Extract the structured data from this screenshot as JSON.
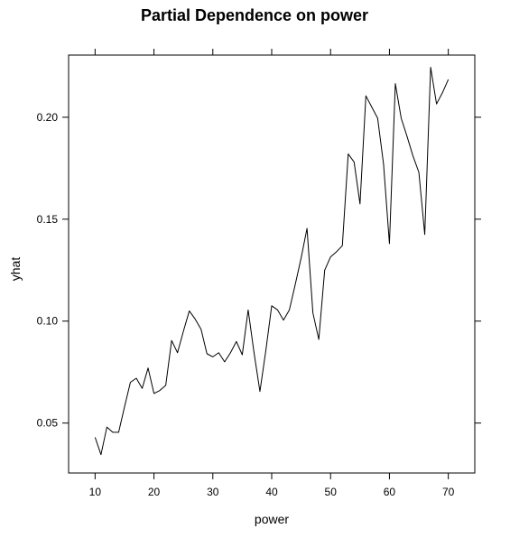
{
  "chart_data": {
    "type": "line",
    "title": "Partial Dependence on power",
    "xlabel": "power",
    "ylabel": "yhat",
    "xlim": [
      5.5,
      74.5
    ],
    "ylim": [
      0.0255,
      0.2305
    ],
    "xticks": [
      10,
      20,
      30,
      40,
      50,
      60,
      70
    ],
    "xtick_labels": [
      "10",
      "20",
      "30",
      "40",
      "50",
      "60",
      "70"
    ],
    "yticks": [
      0.05,
      0.1,
      0.15,
      0.2
    ],
    "ytick_labels": [
      "0.05",
      "0.10",
      "0.15",
      "0.20"
    ],
    "grid": false,
    "legend": "none",
    "line_color": "#000000",
    "series": [
      {
        "x": [
          10,
          11,
          12,
          13,
          14,
          15,
          16,
          17,
          18,
          19,
          20,
          21,
          22,
          23,
          24,
          25,
          26,
          27,
          28,
          29,
          30,
          31,
          32,
          33,
          34,
          35,
          36,
          37,
          38,
          39,
          40,
          41,
          42,
          43,
          44,
          45,
          46,
          47,
          48,
          49,
          50,
          51,
          52,
          53,
          54,
          55,
          56,
          57,
          58,
          59,
          60,
          61,
          62,
          63,
          64,
          65,
          66,
          67,
          68,
          69,
          70
        ],
        "y": [
          0.043,
          0.0345,
          0.048,
          0.0455,
          0.0455,
          0.058,
          0.07,
          0.072,
          0.067,
          0.077,
          0.0645,
          0.066,
          0.0685,
          0.0905,
          0.0845,
          0.095,
          0.105,
          0.101,
          0.096,
          0.084,
          0.0825,
          0.0845,
          0.08,
          0.0845,
          0.09,
          0.0835,
          0.1055,
          0.0845,
          0.0655,
          0.0855,
          0.1075,
          0.1055,
          0.1005,
          0.1055,
          0.118,
          0.131,
          0.1455,
          0.104,
          0.091,
          0.125,
          0.1315,
          0.134,
          0.137,
          0.182,
          0.178,
          0.1575,
          0.2105,
          0.205,
          0.1995,
          0.177,
          0.138,
          0.2165,
          0.1995,
          0.1905,
          0.181,
          0.173,
          0.1425,
          0.2245,
          0.2065,
          0.212,
          0.2185
        ]
      }
    ]
  }
}
